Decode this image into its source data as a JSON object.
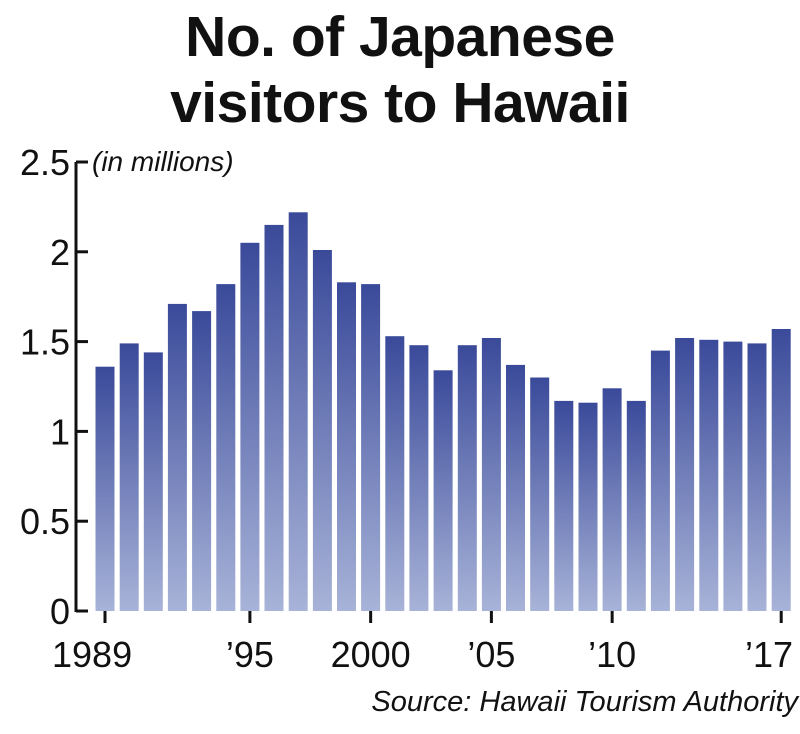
{
  "title_line1": "No. of Japanese",
  "title_line2": "visitors to Hawaii",
  "source": "Source: Hawaii Tourism Authority",
  "bar_color_top": "#3a4a9a",
  "bar_color_bottom": "#a8b3d8",
  "chart_data": {
    "type": "bar",
    "unit_label": "(in millions)",
    "x": [
      1989,
      1990,
      1991,
      1992,
      1993,
      1994,
      1995,
      1996,
      1997,
      1998,
      1999,
      2000,
      2001,
      2002,
      2003,
      2004,
      2005,
      2006,
      2007,
      2008,
      2009,
      2010,
      2011,
      2012,
      2013,
      2014,
      2015,
      2016,
      2017
    ],
    "values": [
      1.36,
      1.49,
      1.44,
      1.71,
      1.67,
      1.82,
      2.05,
      2.15,
      2.22,
      2.01,
      1.83,
      1.82,
      1.53,
      1.48,
      1.34,
      1.48,
      1.52,
      1.37,
      1.3,
      1.17,
      1.16,
      1.24,
      1.17,
      1.45,
      1.52,
      1.51,
      1.5,
      1.49,
      1.57
    ],
    "ylim": [
      0,
      2.5
    ],
    "yticks": [
      0,
      0.5,
      1,
      1.5,
      2,
      2.5
    ],
    "ytick_labels": [
      "0",
      "0.5",
      "1",
      "1.5",
      "2",
      "2.5"
    ],
    "xticks": [
      1989,
      1995,
      2000,
      2005,
      2010,
      2017
    ],
    "xtick_labels": [
      "1989",
      "’95",
      "2000",
      "’05",
      "’10",
      "’17"
    ],
    "grid": false,
    "legend": "none"
  }
}
